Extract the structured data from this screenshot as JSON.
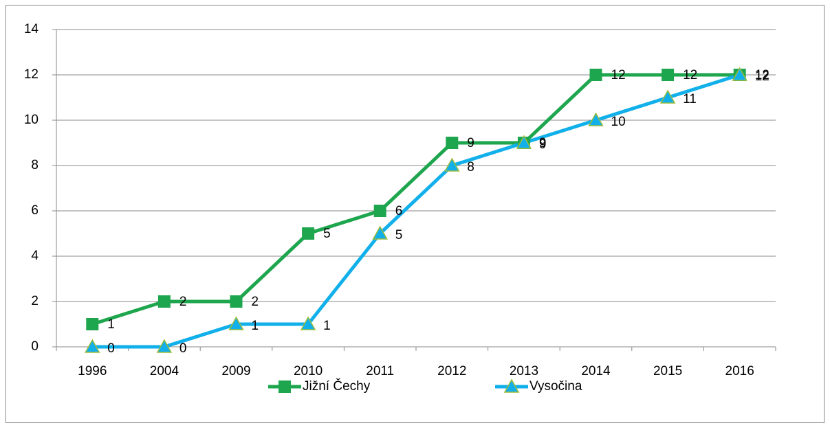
{
  "chart_data": {
    "type": "line",
    "categories": [
      "1996",
      "2004",
      "2009",
      "2010",
      "2011",
      "2012",
      "2013",
      "2014",
      "2015",
      "2016"
    ],
    "series": [
      {
        "name": "Jižní Čechy",
        "color": "#1ea64e",
        "marker": "square",
        "values": [
          1,
          2,
          2,
          5,
          6,
          9,
          9,
          12,
          12,
          12
        ]
      },
      {
        "name": "Vysočina",
        "color": "#12b0ea",
        "marker": "triangle",
        "values": [
          0,
          0,
          1,
          1,
          5,
          8,
          9,
          10,
          11,
          12
        ]
      }
    ],
    "ylim": [
      0,
      14
    ],
    "yticks": [
      0,
      2,
      4,
      6,
      8,
      10,
      12,
      14
    ],
    "grid": true,
    "legend": "bottom"
  }
}
